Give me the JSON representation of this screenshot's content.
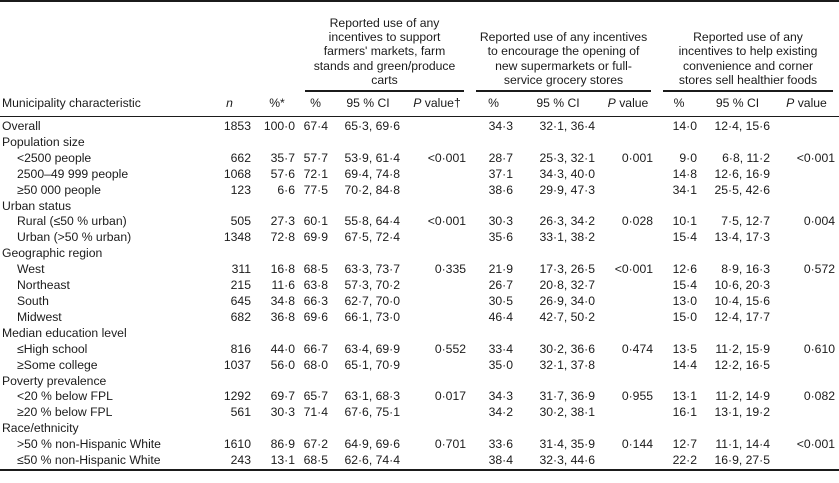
{
  "table": {
    "col_header": {
      "characteristic": "Municipality characteristic",
      "n": "n",
      "pct": "%*"
    },
    "groups": [
      {
        "title": "Reported use of any incentives to support farmers' markets, farm stands and green/produce carts",
        "cols": [
          "%",
          "95 % CI",
          "P value†"
        ]
      },
      {
        "title": "Reported use of any incentives to encourage the opening of new supermarkets or full-service grocery stores",
        "cols": [
          "%",
          "95 % CI",
          "P value"
        ]
      },
      {
        "title": "Reported use of any incentives to help existing convenience and corner stores sell healthier foods",
        "cols": [
          "%",
          "95 % CI",
          "P value"
        ]
      }
    ],
    "rows": [
      {
        "label": "Overall",
        "cells": [
          "1853",
          "100·0",
          "67·4",
          "65·3, 69·6",
          "",
          "34·3",
          "32·1, 36·4",
          "",
          "14·0",
          "12·4, 15·6",
          ""
        ]
      },
      {
        "label": "Population size",
        "section": true
      },
      {
        "label": "<2500 people",
        "indent": true,
        "cells": [
          "662",
          "35·7",
          "57·7",
          "53·9, 61·4",
          "<0·001",
          "28·7",
          "25·3, 32·1",
          "0·001",
          "9·0",
          "6·8, 11·2",
          "<0·001"
        ]
      },
      {
        "label": "2500–49 999 people",
        "indent": true,
        "cells": [
          "1068",
          "57·6",
          "72·1",
          "69·4, 74·8",
          "",
          "37·1",
          "34·3, 40·0",
          "",
          "14·8",
          "12·6, 16·9",
          ""
        ]
      },
      {
        "label": "≥50 000 people",
        "indent": true,
        "cells": [
          "123",
          "6·6",
          "77·5",
          "70·2, 84·8",
          "",
          "38·6",
          "29·9, 47·3",
          "",
          "34·1",
          "25·5, 42·6",
          ""
        ]
      },
      {
        "label": "Urban status",
        "section": true
      },
      {
        "label": "Rural (≤50 % urban)",
        "indent": true,
        "cells": [
          "505",
          "27·3",
          "60·1",
          "55·8, 64·4",
          "<0·001",
          "30·3",
          "26·3, 34·2",
          "0·028",
          "10·1",
          "7·5, 12·7",
          "0·004"
        ]
      },
      {
        "label": "Urban (>50 % urban)",
        "indent": true,
        "cells": [
          "1348",
          "72·8",
          "69·9",
          "67·5, 72·4",
          "",
          "35·6",
          "33·1, 38·2",
          "",
          "15·4",
          "13·4, 17·3",
          ""
        ]
      },
      {
        "label": "Geographic region",
        "section": true
      },
      {
        "label": "West",
        "indent": true,
        "cells": [
          "311",
          "16·8",
          "68·5",
          "63·3, 73·7",
          "0·335",
          "21·9",
          "17·3, 26·5",
          "<0·001",
          "12·6",
          "8·9, 16·3",
          "0·572"
        ]
      },
      {
        "label": "Northeast",
        "indent": true,
        "cells": [
          "215",
          "11·6",
          "63·8",
          "57·3, 70·2",
          "",
          "26·7",
          "20·8, 32·7",
          "",
          "15·4",
          "10·6, 20·3",
          ""
        ]
      },
      {
        "label": "South",
        "indent": true,
        "cells": [
          "645",
          "34·8",
          "66·3",
          "62·7, 70·0",
          "",
          "30·5",
          "26·9, 34·0",
          "",
          "13·0",
          "10·4, 15·6",
          ""
        ]
      },
      {
        "label": "Midwest",
        "indent": true,
        "cells": [
          "682",
          "36·8",
          "69·6",
          "66·1, 73·0",
          "",
          "46·4",
          "42·7, 50·2",
          "",
          "15·0",
          "12·4, 17·7",
          ""
        ]
      },
      {
        "label": "Median education level",
        "section": true
      },
      {
        "label": "≤High school",
        "indent": true,
        "cells": [
          "816",
          "44·0",
          "66·7",
          "63·4, 69·9",
          "0·552",
          "33·4",
          "30·2, 36·6",
          "0·474",
          "13·5",
          "11·2, 15·9",
          "0·610"
        ]
      },
      {
        "label": "≥Some college",
        "indent": true,
        "cells": [
          "1037",
          "56·0",
          "68·0",
          "65·1, 70·9",
          "",
          "35·0",
          "32·1, 37·8",
          "",
          "14·4",
          "12·2, 16·5",
          ""
        ]
      },
      {
        "label": "Poverty prevalence",
        "section": true
      },
      {
        "label": "<20 % below FPL",
        "indent": true,
        "cells": [
          "1292",
          "69·7",
          "65·7",
          "63·1, 68·3",
          "0·017",
          "34·3",
          "31·7, 36·9",
          "0·955",
          "13·1",
          "11·2, 14·9",
          "0·082"
        ]
      },
      {
        "label": "≥20 % below FPL",
        "indent": true,
        "cells": [
          "561",
          "30·3",
          "71·4",
          "67·6, 75·1",
          "",
          "34·2",
          "30·2, 38·1",
          "",
          "16·1",
          "13·1, 19·2",
          ""
        ]
      },
      {
        "label": "Race/ethnicity",
        "section": true
      },
      {
        "label": ">50 % non-Hispanic White",
        "indent": true,
        "cells": [
          "1610",
          "86·9",
          "67·2",
          "64·9, 69·6",
          "0·701",
          "33·6",
          "31·4, 35·9",
          "0·144",
          "12·7",
          "11·1, 14·4",
          "<0·001"
        ]
      },
      {
        "label": "≤50 % non-Hispanic White",
        "indent": true,
        "cells": [
          "243",
          "13·1",
          "68·5",
          "62·6, 74·4",
          "",
          "38·4",
          "32·3, 44·6",
          "",
          "22·2",
          "16·9, 27·5",
          ""
        ]
      }
    ]
  }
}
